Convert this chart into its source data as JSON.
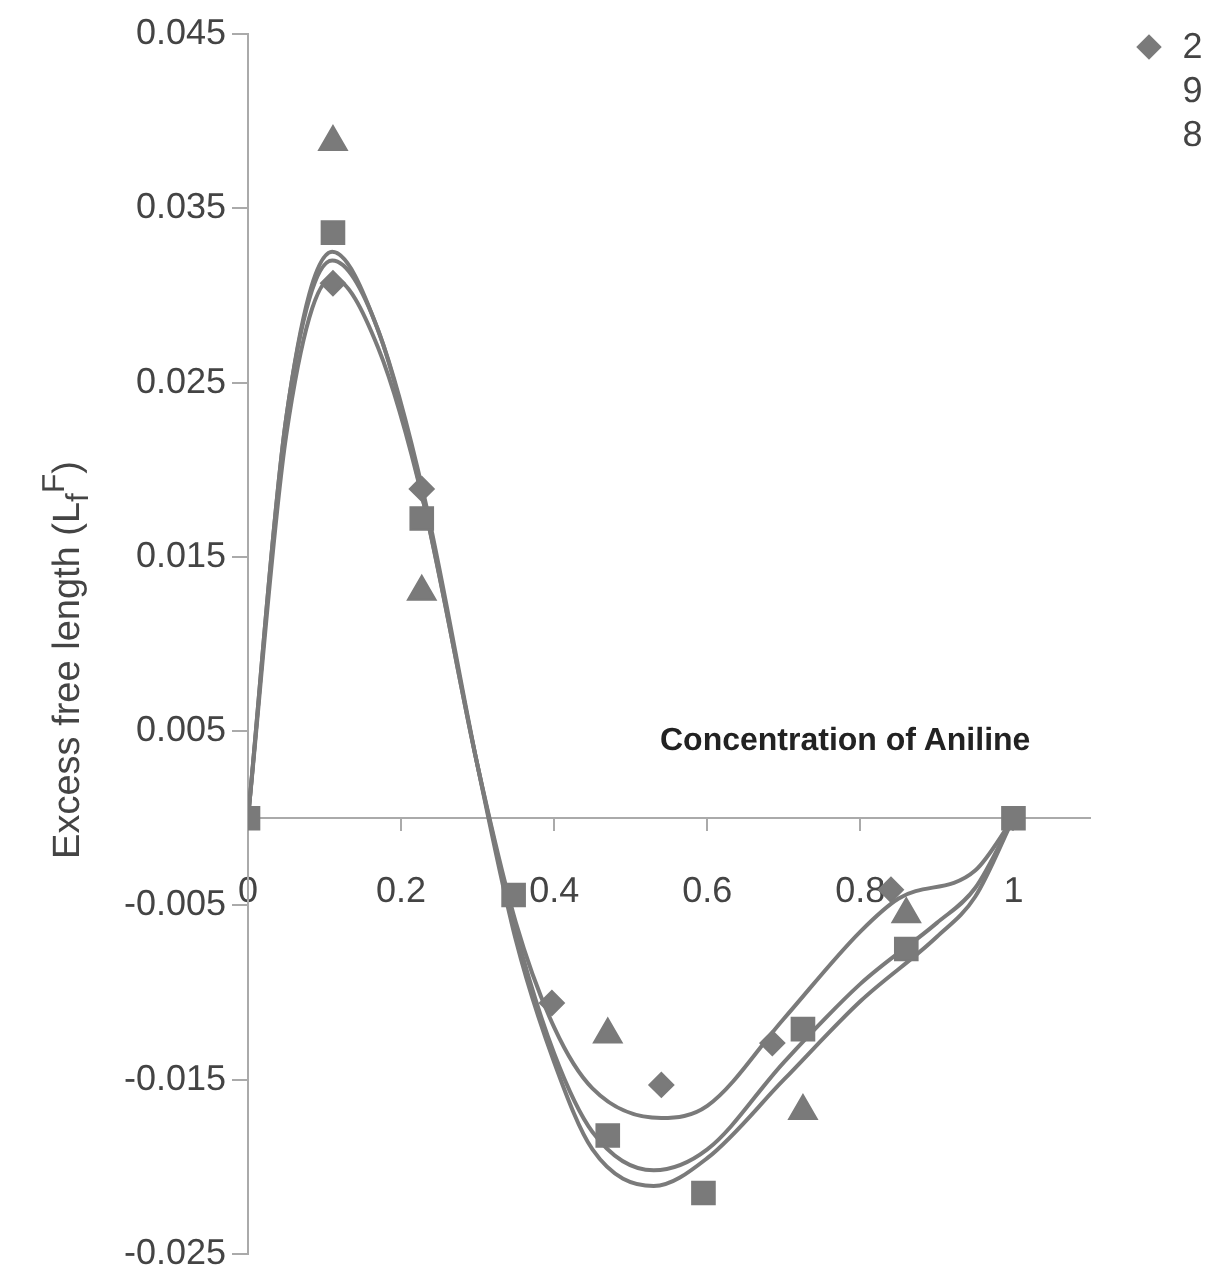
{
  "chart_data": {
    "type": "scatter",
    "xlabel": "Concentration of Aniline",
    "ylabel": "Excess free length (L$_{f}$$^{F}$)",
    "xlim": [
      0,
      1.1
    ],
    "xticks": [
      0,
      0.2,
      0.4,
      0.6,
      0.8,
      1
    ],
    "ylim": [
      -0.025,
      0.045
    ],
    "yticks": [
      -0.025,
      -0.015,
      -0.005,
      0.005,
      0.015,
      0.025,
      0.035,
      0.045
    ],
    "grid": false,
    "legend": "top right",
    "series": [
      {
        "name": "298",
        "color": "#7a7a7a",
        "marker": "diamond",
        "x": [
          0.111,
          0.227,
          0.397,
          0.54,
          0.685,
          0.84
        ],
        "values": [
          0.0307,
          0.0189,
          -0.0106,
          -0.0153,
          -0.0129,
          -0.0041
        ]
      },
      {
        "color": "#7a7a7a",
        "marker": "triangle",
        "x": [
          0.111,
          0.227,
          0.47,
          0.725,
          0.86
        ],
        "values": [
          0.0388,
          0.013,
          -0.0124,
          -0.0168,
          -0.0055
        ]
      },
      {
        "color": "#7a7a7a",
        "marker": "square",
        "x": [
          0,
          0.111,
          0.227,
          0.347,
          0.47,
          0.595,
          0.725,
          0.86,
          1
        ],
        "values": [
          0,
          0.0336,
          0.0172,
          -0.0044,
          -0.0182,
          -0.0215,
          -0.0121,
          -0.0075,
          0
        ]
      },
      {
        "type": "line",
        "color": "#7a7a7a",
        "marker": "none",
        "x": [
          0,
          0.05,
          0.11,
          0.17,
          0.23,
          0.3,
          0.35,
          0.4,
          0.45,
          0.54,
          0.6,
          0.7,
          0.8,
          0.85,
          0.95,
          1
        ],
        "values": [
          0,
          0.022,
          0.031,
          0.027,
          0.018,
          0.003,
          -0.006,
          -0.012,
          -0.0155,
          -0.0172,
          -0.0165,
          -0.0115,
          -0.0065,
          -0.0046,
          -0.003,
          0
        ]
      },
      {
        "type": "line",
        "color": "#7a7a7a",
        "marker": "none",
        "x": [
          0,
          0.05,
          0.11,
          0.17,
          0.23,
          0.3,
          0.35,
          0.4,
          0.45,
          0.53,
          0.6,
          0.7,
          0.8,
          0.9,
          0.95,
          1
        ],
        "values": [
          0,
          0.023,
          0.032,
          0.028,
          0.018,
          0.003,
          -0.0065,
          -0.0135,
          -0.018,
          -0.0202,
          -0.019,
          -0.014,
          -0.0095,
          -0.006,
          -0.004,
          0
        ]
      },
      {
        "type": "line",
        "color": "#7a7a7a",
        "marker": "none",
        "x": [
          0,
          0.05,
          0.11,
          0.17,
          0.23,
          0.3,
          0.35,
          0.4,
          0.45,
          0.53,
          0.6,
          0.7,
          0.8,
          0.9,
          0.95,
          1
        ],
        "values": [
          0,
          0.023,
          0.0325,
          0.028,
          0.0185,
          0.003,
          -0.007,
          -0.014,
          -0.019,
          -0.0211,
          -0.0195,
          -0.015,
          -0.0105,
          -0.0068,
          -0.0045,
          0
        ]
      }
    ]
  }
}
